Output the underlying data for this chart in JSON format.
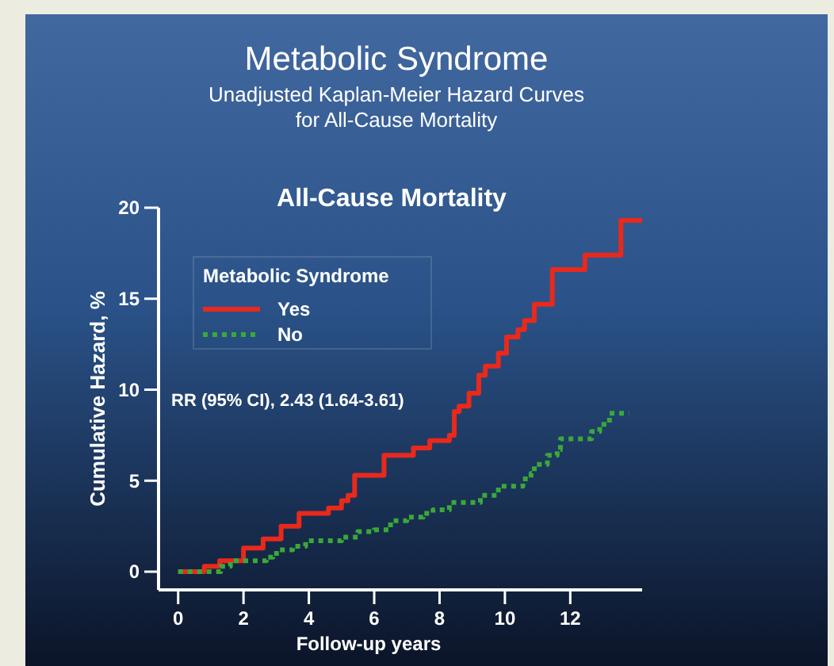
{
  "chart_data": {
    "type": "step",
    "title": "Metabolic Syndrome",
    "subtitle": "Unadjusted Kaplan-Meier Hazard Curves\nfor All-Cause Mortality",
    "annotations": [
      "All-Cause Mortality",
      "RR (95% CI), 2.43 (1.64-3.61)"
    ],
    "xlabel": "Follow-up years",
    "ylabel": "Cumulative Hazard, %",
    "legend_title": "Metabolic Syndrome",
    "legend": "top left",
    "grid": false,
    "xlim": [
      -0.6,
      14.2
    ],
    "xticks": [
      0,
      2,
      4,
      6,
      8,
      10,
      12
    ],
    "ylim": [
      -1,
      20
    ],
    "yticks": [
      0,
      5,
      10,
      15,
      20
    ],
    "series": [
      {
        "name": "Yes",
        "color": "#e8291c",
        "line_style": "solid",
        "x": [
          0,
          0.8,
          1.27,
          2.0,
          2.6,
          3.15,
          3.7,
          4.6,
          5.0,
          5.2,
          5.4,
          6.3,
          7.2,
          7.7,
          8.3,
          8.45,
          8.6,
          8.9,
          9.2,
          9.4,
          9.8,
          10.05,
          10.4,
          10.6,
          10.9,
          11.45,
          12.45,
          13.55,
          14.2
        ],
        "values": [
          0,
          0.3,
          0.6,
          1.3,
          1.8,
          2.5,
          3.2,
          3.5,
          3.9,
          4.2,
          5.3,
          6.4,
          6.8,
          7.2,
          7.5,
          8.8,
          9.1,
          9.8,
          10.8,
          11.3,
          12.0,
          12.9,
          13.3,
          13.8,
          14.7,
          16.6,
          17.4,
          19.3,
          19.3
        ]
      },
      {
        "name": "No",
        "color": "#3aa83a",
        "line_style": "dotted",
        "x": [
          0,
          1.2,
          1.3,
          1.6,
          2.7,
          2.9,
          3.1,
          3.5,
          3.9,
          4.6,
          5.0,
          5.5,
          6.0,
          6.5,
          7.0,
          7.5,
          7.8,
          8.3,
          9.25,
          9.8,
          10.55,
          10.8,
          10.9,
          11.3,
          11.6,
          11.7,
          12.65,
          12.9,
          13.2,
          13.8
        ],
        "values": [
          0,
          0,
          0.3,
          0.6,
          0.8,
          1.0,
          1.2,
          1.4,
          1.7,
          1.7,
          1.9,
          2.2,
          2.3,
          2.8,
          3.0,
          3.2,
          3.4,
          3.8,
          4.2,
          4.7,
          5.1,
          5.4,
          5.9,
          6.4,
          6.7,
          7.3,
          7.7,
          8.1,
          8.7,
          8.7
        ]
      }
    ]
  }
}
